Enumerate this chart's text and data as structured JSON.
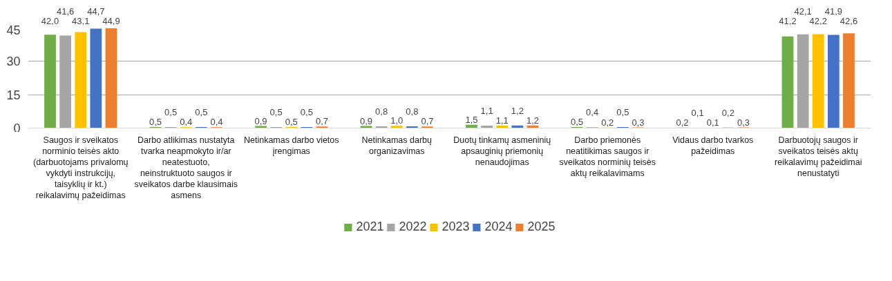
{
  "chart_data": {
    "type": "bar",
    "categories": [
      "Saugos ir sveikatos norminio teisės akto (darbuotojams privalomų vykdyti instrukcijų, taisyklių ir kt.) reikalavimų pažeidimas",
      "Darbo atlikimas nustatyta tvarka neapmokyto ir/ar neatestuoto, neinstruktuoto saugos ir sveikatos darbe klausimais asmens",
      "Netinkamas darbo vietos įrengimas",
      "Netinkamas darbų organizavimas",
      "Duotų tinkamų asmeninių apsauginių priemonių nenaudojimas",
      "Darbo priemonės neatitikimas saugos ir sveikatos norminių teisės aktų reikalavimams",
      "Vidaus darbo tvarkos pažeidimas",
      "Darbuotojų saugos ir sveikatos teisės aktų reikalavimų pažeidimai nenustatyti"
    ],
    "series": [
      {
        "name": "2021",
        "color": "#70ad47",
        "values": [
          42.0,
          0.5,
          0.9,
          0.9,
          1.5,
          0.5,
          0.2,
          41.2
        ],
        "value_labels": [
          "42,0",
          "0,5",
          "0,9",
          "0,9",
          "1,5",
          "0,5",
          "0,2",
          "41,2"
        ]
      },
      {
        "name": "2022",
        "color": "#a5a5a5",
        "values": [
          41.6,
          0.5,
          0.5,
          0.8,
          1.1,
          0.4,
          0.1,
          42.1
        ],
        "value_labels": [
          "41,6",
          "0,5",
          "0,5",
          "0,8",
          "1,1",
          "0,4",
          "0,1",
          "42,1"
        ]
      },
      {
        "name": "2023",
        "color": "#ffc000",
        "values": [
          43.1,
          0.4,
          0.5,
          1.0,
          1.1,
          0.2,
          0.1,
          42.2
        ],
        "value_labels": [
          "43,1",
          "0,4",
          "0,5",
          "1,0",
          "1,1",
          "0,2",
          "0,1",
          "42,2"
        ]
      },
      {
        "name": "2024",
        "color": "#4472c4",
        "values": [
          44.7,
          0.5,
          0.5,
          0.8,
          1.2,
          0.5,
          0.2,
          41.9
        ],
        "value_labels": [
          "44,7",
          "0,5",
          "0,5",
          "0,8",
          "1,2",
          "0,5",
          "0,2",
          "41,9"
        ]
      },
      {
        "name": "2025",
        "color": "#ed7d31",
        "values": [
          44.9,
          0.4,
          0.7,
          0.7,
          1.2,
          0.3,
          0.3,
          42.6
        ],
        "value_labels": [
          "44,9",
          "0,4",
          "0,7",
          "0,7",
          "1,2",
          "0,3",
          "0,3",
          "42,6"
        ]
      }
    ],
    "ylim": [
      0,
      45
    ],
    "yticks": [
      0,
      15,
      30,
      45
    ],
    "grid": "y",
    "legend": "bottom"
  }
}
